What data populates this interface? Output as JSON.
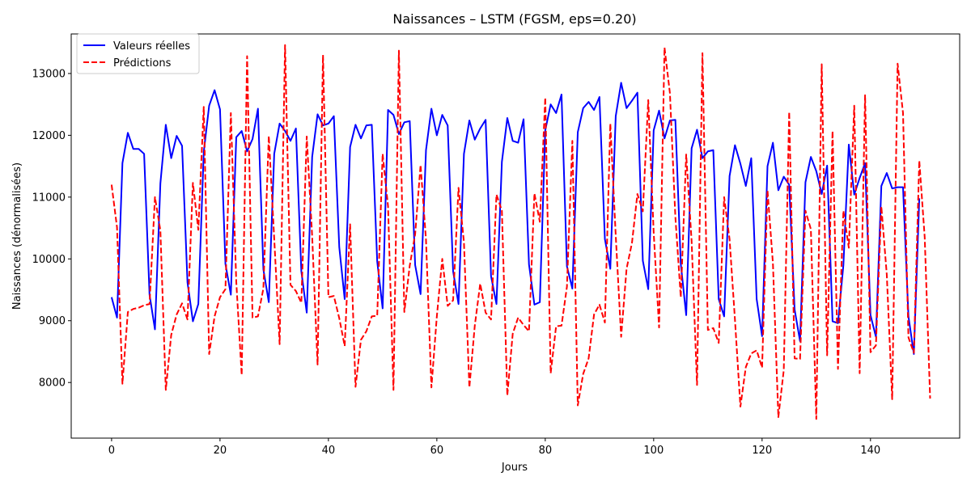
{
  "chart_data": {
    "type": "line",
    "title": "Naissances – LSTM (FGSM, eps=0.20)",
    "xlabel": "Jours",
    "ylabel": "Naissances (dénormalisées)",
    "xlim": [
      -7.45,
      156.45
    ],
    "ylim": [
      7100,
      13640
    ],
    "xticks": [
      0,
      20,
      40,
      60,
      80,
      100,
      120,
      140
    ],
    "yticks": [
      8000,
      9000,
      10000,
      11000,
      12000,
      13000
    ],
    "legend_position": "upper-left",
    "grid": false,
    "series": [
      {
        "name": "Valeurs réelles",
        "color": "#0000ff",
        "style": "solid",
        "values": [
          9380,
          9050,
          11550,
          12040,
          11780,
          11780,
          11700,
          9420,
          8860,
          11220,
          12170,
          11630,
          11990,
          11830,
          9620,
          8990,
          9270,
          11730,
          12480,
          12730,
          12420,
          9920,
          9420,
          11970,
          12070,
          11740,
          11940,
          12430,
          9830,
          9300,
          11700,
          12190,
          12070,
          11910,
          12110,
          9800,
          9130,
          11650,
          12340,
          12160,
          12190,
          12310,
          10190,
          9350,
          11810,
          12170,
          11950,
          12160,
          12170,
          9960,
          9200,
          12410,
          12330,
          12020,
          12210,
          12230,
          9900,
          9430,
          11760,
          12430,
          12000,
          12330,
          12160,
          9800,
          9270,
          11700,
          12240,
          11930,
          12110,
          12250,
          9720,
          9270,
          11570,
          12280,
          11910,
          11880,
          12260,
          9910,
          9260,
          9300,
          12080,
          12500,
          12360,
          12660,
          9880,
          9520,
          12050,
          12440,
          12540,
          12410,
          12620,
          10320,
          9840,
          12310,
          12850,
          12440,
          12560,
          12690,
          9970,
          9510,
          12080,
          12400,
          11950,
          12240,
          12250,
          9920,
          9090,
          11790,
          12090,
          11630,
          11740,
          11760,
          9350,
          9070,
          11340,
          11840,
          11540,
          11180,
          11630,
          9350,
          8750,
          11500,
          11880,
          11110,
          11330,
          11200,
          9180,
          8670,
          11240,
          11650,
          11420,
          11050,
          11510,
          8990,
          8960,
          9900,
          11850,
          11040,
          11310,
          11550,
          9090,
          8740,
          11180,
          11390,
          11140,
          11160,
          11160,
          9070,
          8460,
          10980
        ]
      },
      {
        "name": "Prédictions",
        "color": "#ff0000",
        "style": "dashed",
        "values": [
          11200,
          10510,
          7980,
          9140,
          9190,
          9210,
          9250,
          9270,
          11000,
          10460,
          7880,
          8770,
          9100,
          9280,
          9020,
          11230,
          10470,
          12460,
          8460,
          9070,
          9380,
          9510,
          12360,
          9630,
          8120,
          13280,
          9050,
          9070,
          9520,
          11990,
          10330,
          8620,
          13460,
          9580,
          9480,
          9290,
          11980,
          10370,
          8290,
          13300,
          9380,
          9400,
          9040,
          8590,
          10560,
          7930,
          8690,
          8830,
          9070,
          9080,
          11700,
          10850,
          7880,
          13370,
          9140,
          9890,
          10400,
          11520,
          10310,
          7920,
          9070,
          10000,
          9240,
          9330,
          11150,
          10270,
          7920,
          8920,
          9600,
          9130,
          9020,
          11040,
          10780,
          7790,
          8790,
          9050,
          8930,
          8830,
          11060,
          10600,
          12610,
          8150,
          8910,
          8920,
          9550,
          11910,
          7630,
          8140,
          8390,
          9100,
          9260,
          8970,
          12190,
          10380,
          8740,
          9840,
          10260,
          11050,
          10770,
          12570,
          10430,
          8890,
          13420,
          12680,
          10680,
          9380,
          11690,
          10290,
          7960,
          13330,
          8850,
          8880,
          8640,
          11000,
          10320,
          9010,
          7610,
          8250,
          8470,
          8520,
          8240,
          11110,
          9930,
          7440,
          8200,
          12380,
          8390,
          8380,
          10780,
          10480,
          7410,
          13150,
          8440,
          12070,
          8220,
          10780,
          10180,
          12480,
          8150,
          12650,
          8490,
          8600,
          10850,
          9750,
          7730,
          13160,
          12360,
          8730,
          8480,
          11590,
          10350,
          7740
        ]
      }
    ]
  }
}
